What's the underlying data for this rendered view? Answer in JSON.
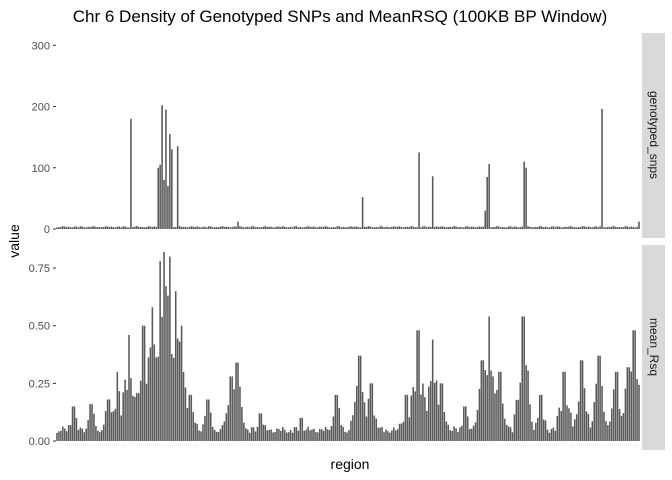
{
  "chart_data": {
    "type": "bar",
    "title": "Chr 6 Density of Genotyped SNPs and MeanRSQ (100KB BP Window)",
    "xlabel": "region",
    "ylabel": "value",
    "bar_color": "#595959",
    "strip_color": "#d9d9d9",
    "panels": [
      {
        "strip": "genotyped_snps",
        "ylim": [
          0,
          320
        ],
        "yticks": [
          0,
          100,
          200,
          300
        ],
        "ytick_labels": [
          "0",
          "100",
          "200",
          "300"
        ],
        "baseline": 3,
        "peaks": [
          {
            "x": 0.127,
            "v": 180
          },
          {
            "x": 0.176,
            "v": 100
          },
          {
            "x": 0.179,
            "v": 105
          },
          {
            "x": 0.182,
            "v": 202
          },
          {
            "x": 0.185,
            "v": 80
          },
          {
            "x": 0.188,
            "v": 195
          },
          {
            "x": 0.191,
            "v": 70
          },
          {
            "x": 0.196,
            "v": 155
          },
          {
            "x": 0.199,
            "v": 130
          },
          {
            "x": 0.208,
            "v": 135
          },
          {
            "x": 0.313,
            "v": 12
          },
          {
            "x": 0.524,
            "v": 52
          },
          {
            "x": 0.621,
            "v": 125
          },
          {
            "x": 0.644,
            "v": 82
          },
          {
            "x": 0.646,
            "v": 86
          },
          {
            "x": 0.736,
            "v": 30
          },
          {
            "x": 0.739,
            "v": 85
          },
          {
            "x": 0.743,
            "v": 106
          },
          {
            "x": 0.801,
            "v": 110
          },
          {
            "x": 0.804,
            "v": 100
          },
          {
            "x": 0.934,
            "v": 196
          },
          {
            "x": 0.997,
            "v": 12
          }
        ]
      },
      {
        "strip": "mean_Rsq",
        "ylim": [
          0,
          0.85
        ],
        "yticks": [
          0,
          0.25,
          0.5,
          0.75
        ],
        "ytick_labels": [
          "0.00",
          "0.25",
          "0.50",
          "0.75"
        ],
        "baseline": 0.04,
        "peaks": [
          {
            "x": 0.03,
            "v": 0.15
          },
          {
            "x": 0.06,
            "v": 0.16
          },
          {
            "x": 0.09,
            "v": 0.18
          },
          {
            "x": 0.105,
            "v": 0.3
          },
          {
            "x": 0.125,
            "v": 0.46
          },
          {
            "x": 0.15,
            "v": 0.5
          },
          {
            "x": 0.165,
            "v": 0.58
          },
          {
            "x": 0.178,
            "v": 0.78
          },
          {
            "x": 0.186,
            "v": 0.82
          },
          {
            "x": 0.194,
            "v": 0.8
          },
          {
            "x": 0.205,
            "v": 0.65
          },
          {
            "x": 0.215,
            "v": 0.5
          },
          {
            "x": 0.23,
            "v": 0.2
          },
          {
            "x": 0.26,
            "v": 0.18
          },
          {
            "x": 0.3,
            "v": 0.28
          },
          {
            "x": 0.31,
            "v": 0.34
          },
          {
            "x": 0.35,
            "v": 0.12
          },
          {
            "x": 0.42,
            "v": 0.1
          },
          {
            "x": 0.48,
            "v": 0.2
          },
          {
            "x": 0.52,
            "v": 0.37
          },
          {
            "x": 0.54,
            "v": 0.25
          },
          {
            "x": 0.6,
            "v": 0.2
          },
          {
            "x": 0.62,
            "v": 0.48
          },
          {
            "x": 0.645,
            "v": 0.44
          },
          {
            "x": 0.66,
            "v": 0.25
          },
          {
            "x": 0.7,
            "v": 0.15
          },
          {
            "x": 0.73,
            "v": 0.35
          },
          {
            "x": 0.743,
            "v": 0.54
          },
          {
            "x": 0.76,
            "v": 0.3
          },
          {
            "x": 0.8,
            "v": 0.54
          },
          {
            "x": 0.83,
            "v": 0.2
          },
          {
            "x": 0.87,
            "v": 0.3
          },
          {
            "x": 0.9,
            "v": 0.35
          },
          {
            "x": 0.93,
            "v": 0.37
          },
          {
            "x": 0.96,
            "v": 0.3
          },
          {
            "x": 0.98,
            "v": 0.32
          },
          {
            "x": 0.99,
            "v": 0.48
          }
        ]
      }
    ]
  }
}
